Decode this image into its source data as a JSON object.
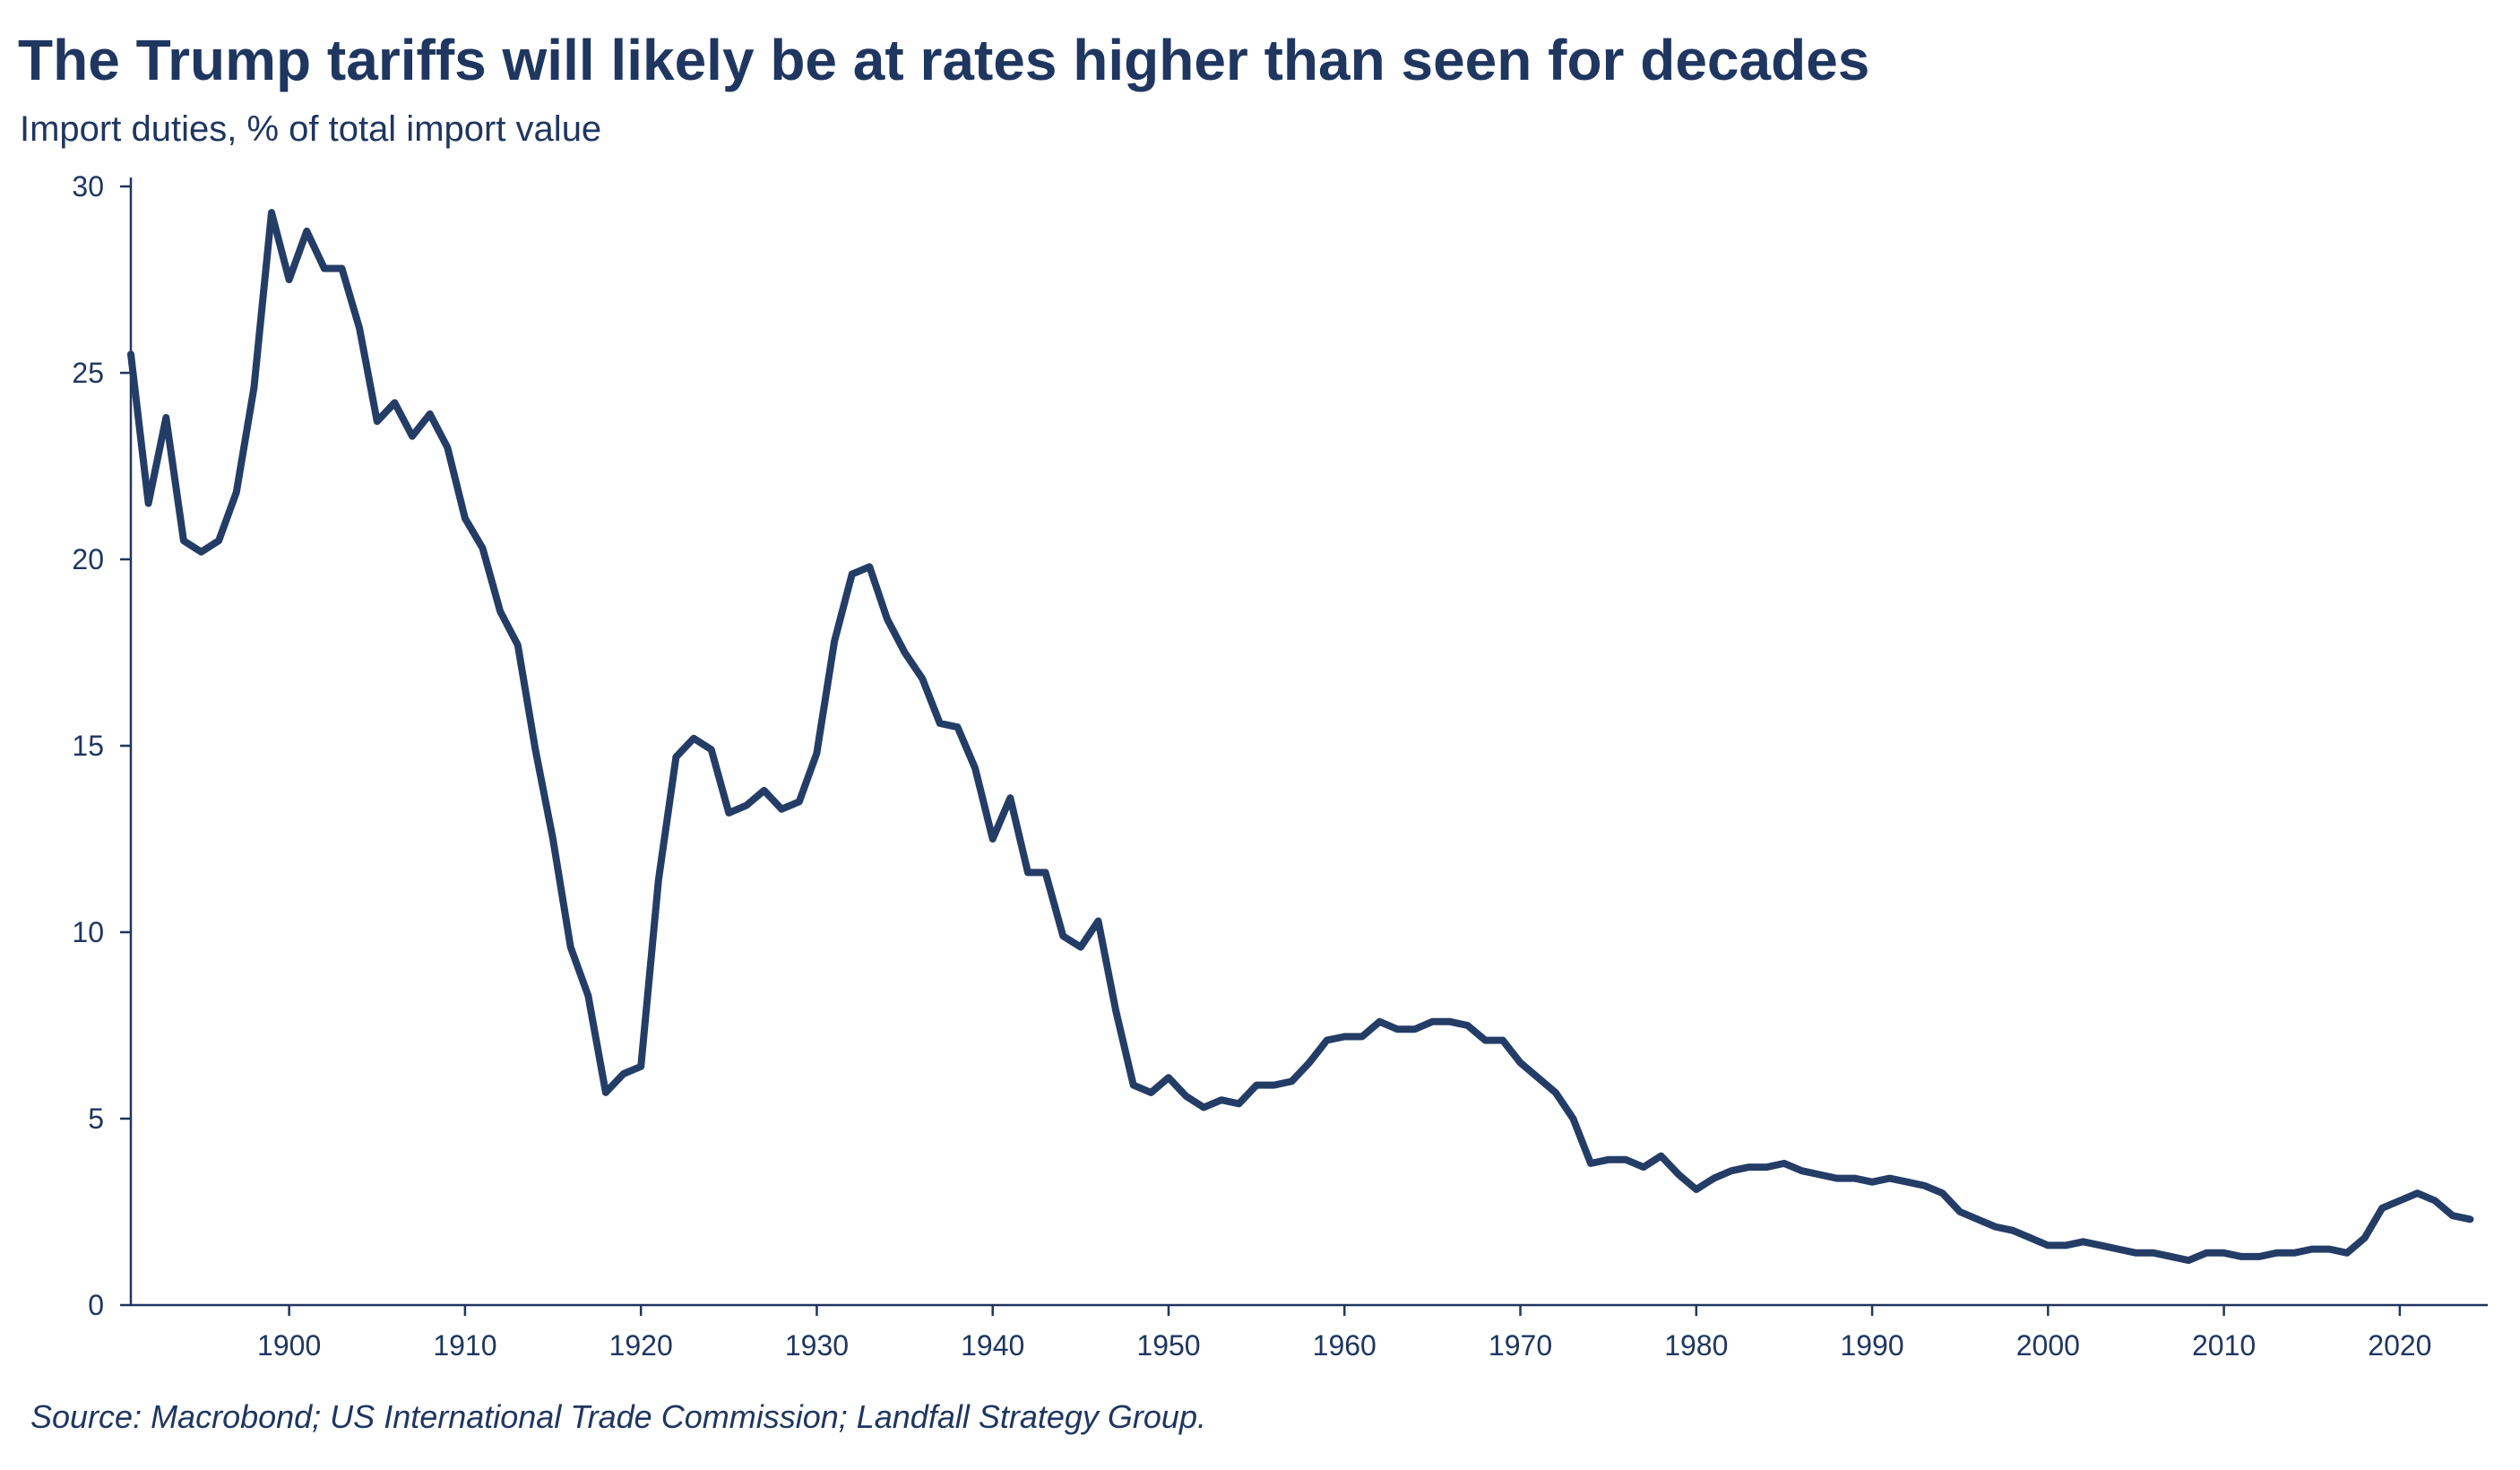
{
  "title": "The Trump tariffs will likely be at rates higher than seen for decades",
  "subtitle": "Import duties, % of total import value",
  "source": "Source: Macrobond; US International Trade Commission; Landfall Strategy Group.",
  "colors": {
    "line": "#243d66",
    "axis": "#1f3660",
    "text": "#1f3660"
  },
  "chart_data": {
    "type": "line",
    "title": "The Trump tariffs will likely be at rates higher than seen for decades",
    "ylabel": "Import duties, % of total import value",
    "xlabel": "",
    "xlim": [
      1891,
      2025
    ],
    "ylim": [
      0,
      30
    ],
    "grid": false,
    "legend": "none",
    "y_ticks": [
      0,
      5,
      10,
      15,
      20,
      25,
      30
    ],
    "x_ticks": [
      1900,
      1910,
      1920,
      1930,
      1940,
      1950,
      1960,
      1970,
      1980,
      1990,
      2000,
      2010,
      2020
    ],
    "series": [
      {
        "x": [
          1891,
          1892,
          1893,
          1894,
          1895,
          1896,
          1897,
          1898,
          1899,
          1900,
          1901,
          1902,
          1903,
          1904,
          1905,
          1906,
          1907,
          1908,
          1909,
          1910,
          1911,
          1912,
          1913,
          1914,
          1915,
          1916,
          1917,
          1918,
          1919,
          1920,
          1921,
          1922,
          1923,
          1924,
          1925,
          1926,
          1927,
          1928,
          1929,
          1930,
          1931,
          1932,
          1933,
          1934,
          1935,
          1936,
          1937,
          1938,
          1939,
          1940,
          1941,
          1942,
          1943,
          1944,
          1945,
          1946,
          1947,
          1948,
          1949,
          1950,
          1951,
          1952,
          1953,
          1954,
          1955,
          1956,
          1957,
          1958,
          1959,
          1960,
          1961,
          1962,
          1963,
          1964,
          1965,
          1966,
          1967,
          1968,
          1969,
          1970,
          1971,
          1972,
          1973,
          1974,
          1975,
          1976,
          1977,
          1978,
          1979,
          1980,
          1981,
          1982,
          1983,
          1984,
          1985,
          1986,
          1987,
          1988,
          1989,
          1990,
          1991,
          1992,
          1993,
          1994,
          1995,
          1996,
          1997,
          1998,
          1999,
          2000,
          2001,
          2002,
          2003,
          2004,
          2005,
          2006,
          2007,
          2008,
          2009,
          2010,
          2011,
          2012,
          2013,
          2014,
          2015,
          2016,
          2017,
          2018,
          2019,
          2020,
          2021,
          2022,
          2023,
          2024
        ],
        "values": [
          25.5,
          21.5,
          23.8,
          20.5,
          20.2,
          20.5,
          21.8,
          24.6,
          29.3,
          27.5,
          28.8,
          27.8,
          27.8,
          26.2,
          23.7,
          24.2,
          23.3,
          23.9,
          23.0,
          21.1,
          20.3,
          18.6,
          17.7,
          14.9,
          12.5,
          9.6,
          8.3,
          5.7,
          6.2,
          6.4,
          11.4,
          14.7,
          15.2,
          14.9,
          13.2,
          13.4,
          13.8,
          13.3,
          13.5,
          14.8,
          17.8,
          19.6,
          19.8,
          18.4,
          17.5,
          16.8,
          15.6,
          15.5,
          14.4,
          12.5,
          13.6,
          11.6,
          11.6,
          9.9,
          9.6,
          10.3,
          7.9,
          5.9,
          5.7,
          6.1,
          5.6,
          5.3,
          5.5,
          5.4,
          5.9,
          5.9,
          6.0,
          6.5,
          7.1,
          7.2,
          7.2,
          7.6,
          7.4,
          7.4,
          7.6,
          7.6,
          7.5,
          7.1,
          7.1,
          6.5,
          6.1,
          5.7,
          5.0,
          3.8,
          3.9,
          3.9,
          3.7,
          4.0,
          3.5,
          3.1,
          3.4,
          3.6,
          3.7,
          3.7,
          3.8,
          3.6,
          3.5,
          3.4,
          3.4,
          3.3,
          3.4,
          3.3,
          3.2,
          3.0,
          2.5,
          2.3,
          2.1,
          2.0,
          1.8,
          1.6,
          1.6,
          1.7,
          1.6,
          1.5,
          1.4,
          1.4,
          1.3,
          1.2,
          1.4,
          1.4,
          1.3,
          1.3,
          1.4,
          1.4,
          1.5,
          1.5,
          1.4,
          1.8,
          2.6,
          2.8,
          3.0,
          2.8,
          2.4,
          2.3
        ]
      }
    ]
  }
}
